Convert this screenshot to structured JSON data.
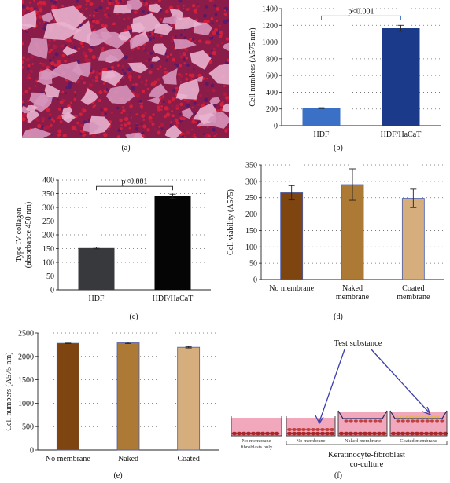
{
  "panels": {
    "a": {
      "caption": "(a)"
    },
    "b": {
      "caption": "(b)"
    },
    "c": {
      "caption": "(c)"
    },
    "d": {
      "caption": "(d)"
    },
    "e": {
      "caption": "(e)"
    },
    "f": {
      "caption": "(f)"
    }
  },
  "chart_data": [
    {
      "panel": "b",
      "type": "bar",
      "categories": [
        "HDF",
        "HDF/HaCaT"
      ],
      "values": [
        210,
        1165
      ],
      "errors": [
        5,
        35
      ],
      "colors": [
        "#3a70c6",
        "#1b3a8a"
      ],
      "ylabel": "Cell numbers (A575 nm)",
      "ylim": [
        0,
        1400
      ],
      "yticks": [
        0,
        200,
        400,
        600,
        800,
        1000,
        1200,
        1400
      ],
      "grid": true,
      "annotation": "p<0.001"
    },
    {
      "panel": "c",
      "type": "bar",
      "categories": [
        "HDF",
        "HDF/HaCaT"
      ],
      "values": [
        152,
        340
      ],
      "errors": [
        3,
        8
      ],
      "colors": [
        "#38393d",
        "#050505"
      ],
      "ylabel": "Type IV collagen",
      "ylabel2": "(absorbance 450 nm)",
      "ylim": [
        0,
        400
      ],
      "yticks": [
        0,
        50,
        100,
        150,
        200,
        250,
        300,
        350,
        400
      ],
      "grid": true,
      "annotation": "p<0.001"
    },
    {
      "panel": "d",
      "type": "bar",
      "categories": [
        "No membrane",
        "Naked\nmembrane",
        "Coated\nmembrane"
      ],
      "values": [
        265,
        290,
        248
      ],
      "errors": [
        22,
        48,
        28
      ],
      "colors": [
        "#7f4510",
        "#ad7a36",
        "#d6ad7c"
      ],
      "ylabel": "Cell viability (A575)",
      "ylim": [
        0,
        350
      ],
      "yticks": [
        0,
        50,
        100,
        150,
        200,
        250,
        300,
        350
      ],
      "grid": true
    },
    {
      "panel": "e",
      "type": "bar",
      "categories": [
        "No membrane",
        "Naked\nmembrane",
        "Coated\nmembrane"
      ],
      "values": [
        2280,
        2290,
        2195
      ],
      "errors": [
        5,
        15,
        15
      ],
      "colors": [
        "#7f4510",
        "#ad7a36",
        "#d6ad7c"
      ],
      "ylabel": "Cell numbers (A575 nm)",
      "ylim": [
        0,
        2500
      ],
      "yticks": [
        0,
        500,
        1000,
        1500,
        2000,
        2500
      ],
      "grid": true
    }
  ],
  "diagram_f": {
    "test_substance": "Test substance",
    "wells": [
      {
        "label": "No membrane\nfibroblasts only"
      },
      {
        "label": "No membrane"
      },
      {
        "label": "Naked membrane"
      },
      {
        "label": "Coated membrane"
      }
    ],
    "group_label": "Keratinocyte-fibroblast\nco-culture"
  },
  "colors": {
    "medium": "#f1a8bd",
    "cells": "#a8282a",
    "coating": "#e3b35a",
    "arrow": "#3b3faa"
  }
}
